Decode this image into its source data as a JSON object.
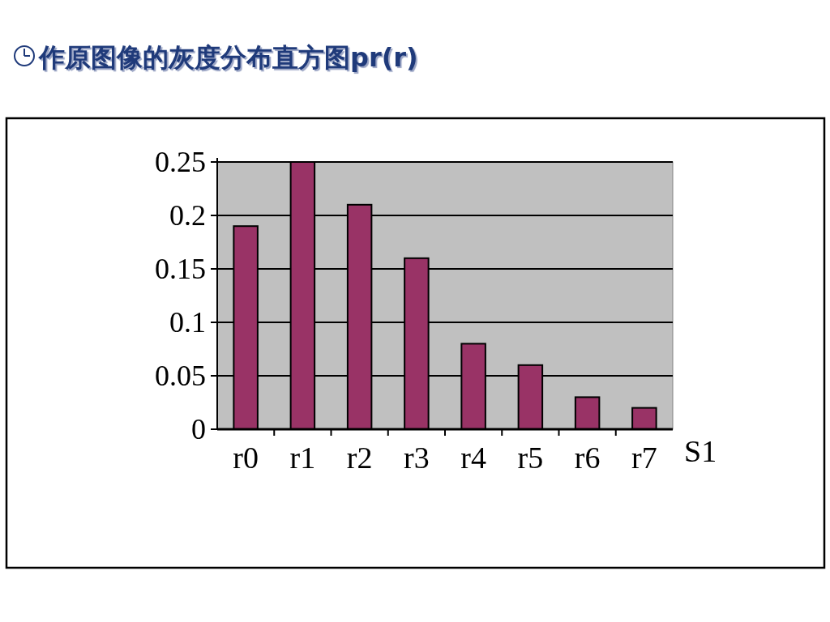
{
  "chart_data": {
    "type": "bar",
    "title": "作原图像的灰度分布直方图pr(r)",
    "categories": [
      "r0",
      "r1",
      "r2",
      "r3",
      "r4",
      "r5",
      "r6",
      "r7"
    ],
    "series": [
      {
        "name": "S1",
        "color": "#993366",
        "values": [
          0.19,
          0.25,
          0.21,
          0.16,
          0.08,
          0.06,
          0.03,
          0.02
        ]
      }
    ],
    "ylim": [
      0,
      0.25
    ],
    "yticks": [
      0,
      0.05,
      0.1,
      0.15,
      0.2,
      0.25
    ],
    "grid": "y"
  }
}
